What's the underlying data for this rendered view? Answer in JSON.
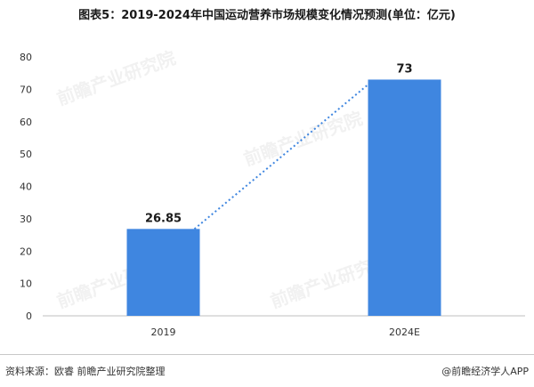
{
  "title": "图表5：2019-2024年中国运动营养市场规模变化情况预测(单位：亿元)",
  "chart_data": {
    "type": "bar",
    "categories": [
      "2019",
      "2024E"
    ],
    "values": [
      26.85,
      73
    ],
    "value_labels": [
      "26.85",
      "73"
    ],
    "ylim": [
      0,
      80
    ],
    "yticks": [
      0,
      10,
      20,
      30,
      40,
      50,
      60,
      70,
      80
    ],
    "trendline": true,
    "bar_color": "#3f86e0",
    "trend_color": "#3f86e0",
    "grid": false
  },
  "footer": {
    "source": "资料来源：欧睿 前瞻产业研究院整理",
    "credit": "@前瞻经济学人APP"
  },
  "watermark": "前瞻产业研究院"
}
